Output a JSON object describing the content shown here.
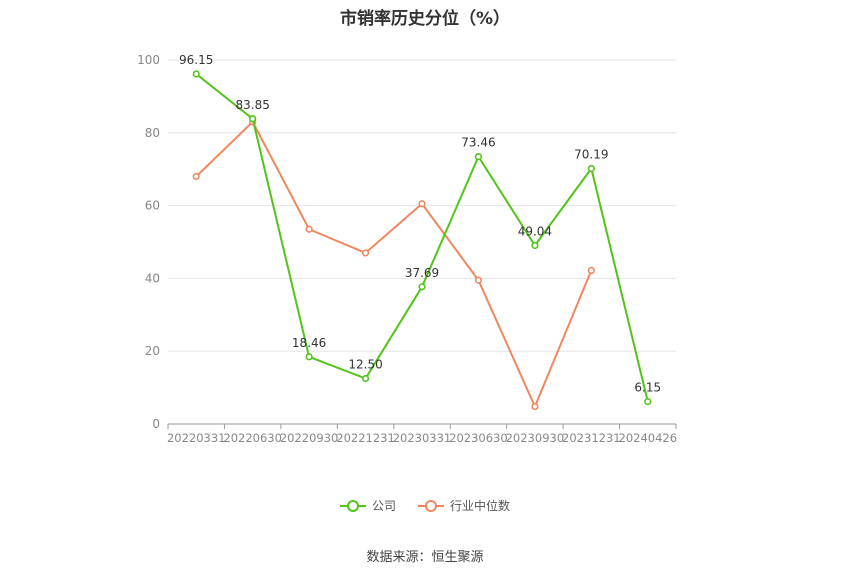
{
  "chart_data": {
    "type": "line",
    "title": "市销率历史分位（%）",
    "categories": [
      "20220331",
      "20220630",
      "20220930",
      "20221231",
      "20230331",
      "20230630",
      "20230930",
      "20231231",
      "20240426"
    ],
    "ylim": [
      0,
      100
    ],
    "yticks": [
      0,
      20,
      40,
      60,
      80,
      100
    ],
    "grid": true,
    "legend_position": "bottom",
    "series": [
      {
        "name": "公司",
        "color": "#52c41a",
        "values": [
          96.15,
          83.85,
          18.46,
          12.5,
          37.69,
          73.46,
          49.04,
          70.19,
          6.15
        ],
        "labels": [
          "96.15",
          "83.85",
          "18.46",
          "12.50",
          "37.69",
          "73.46",
          "49.04",
          "70.19",
          "6.15"
        ]
      },
      {
        "name": "行业中位数",
        "color": "#f0885f",
        "values": [
          68,
          83,
          53.5,
          47,
          60.5,
          39.5,
          4.8,
          42.2,
          null
        ]
      }
    ]
  },
  "source": "数据来源：恒生聚源"
}
